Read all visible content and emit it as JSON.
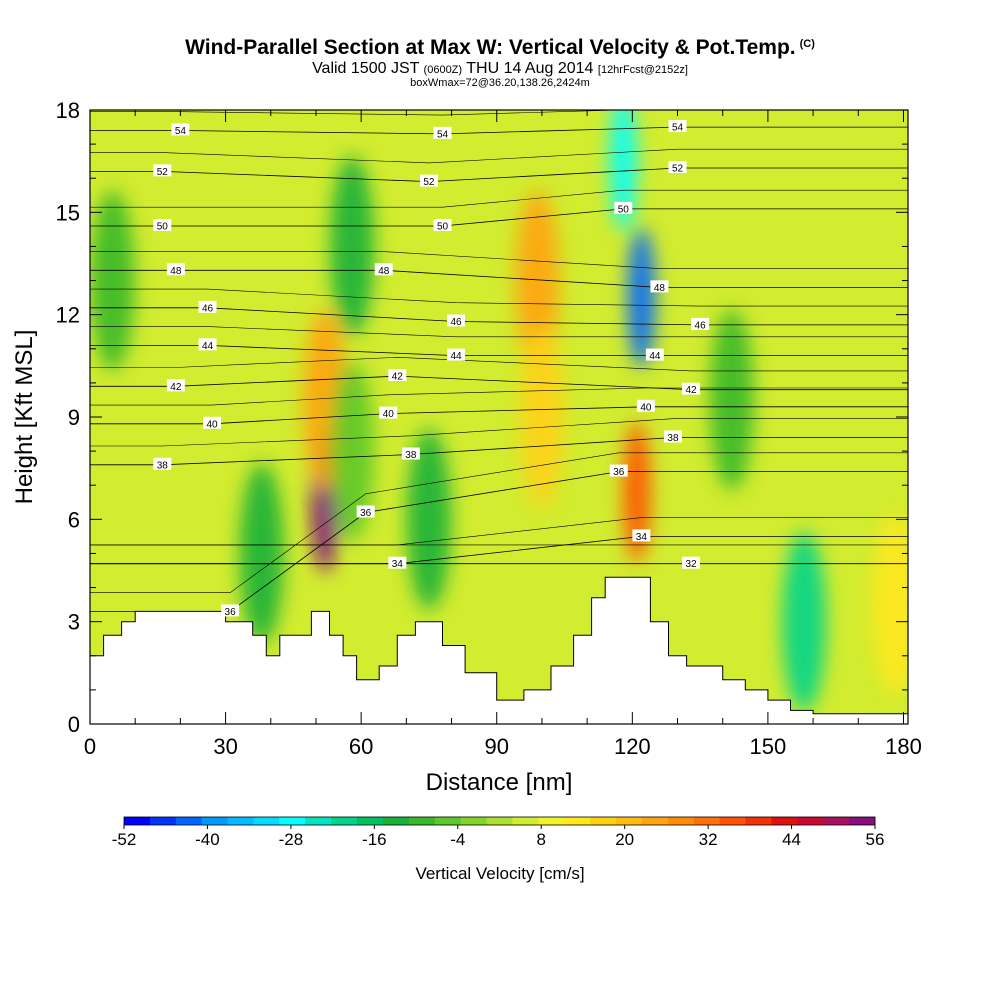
{
  "header": {
    "title": "Wind-Parallel Section at Max W: Vertical Velocity & Pot.Temp.",
    "copyright": "(C)",
    "valid_main": "Valid 1500 JST",
    "valid_zulu": "(0600Z)",
    "valid_date": "THU 14 Aug 2014",
    "forecast": "[12hrFcst@2152z]",
    "box_info": "boxWmax=72@36.20,138.26,2424m"
  },
  "chart_data": {
    "type": "heatmap",
    "xlabel": "Distance [nm]",
    "ylabel": "Height [Kft MSL]",
    "xlim": [
      0,
      181
    ],
    "ylim": [
      0,
      18
    ],
    "xticks": [
      0,
      30,
      60,
      90,
      120,
      150,
      180
    ],
    "yticks": [
      0,
      3,
      6,
      9,
      12,
      15,
      18
    ],
    "terrain": {
      "x": [
        0,
        3,
        3,
        7,
        7,
        10,
        10,
        20,
        20,
        30,
        30,
        36,
        36,
        39,
        39,
        42,
        42,
        49,
        49,
        53,
        53,
        56,
        56,
        59,
        59,
        64,
        64,
        68,
        68,
        72,
        72,
        78,
        78,
        83,
        83,
        90,
        90,
        96,
        96,
        102,
        102,
        107,
        107,
        111,
        111,
        114,
        114,
        119,
        119,
        124,
        124,
        128,
        128,
        132,
        132,
        140,
        140,
        145,
        145,
        150,
        150,
        155,
        155,
        160,
        160,
        167,
        167,
        173,
        173,
        181
      ],
      "height": [
        2.0,
        2.0,
        2.6,
        2.6,
        3.0,
        3.0,
        3.3,
        3.3,
        3.3,
        3.3,
        3.0,
        3.0,
        2.6,
        2.6,
        2.0,
        2.0,
        2.6,
        2.6,
        3.3,
        3.3,
        2.6,
        2.6,
        2.0,
        2.0,
        1.3,
        1.3,
        1.7,
        1.7,
        2.6,
        2.6,
        3.0,
        3.0,
        2.3,
        2.3,
        1.5,
        1.5,
        0.7,
        0.7,
        1.0,
        1.0,
        1.7,
        1.7,
        2.6,
        2.6,
        3.7,
        3.7,
        4.3,
        4.3,
        4.3,
        4.3,
        3.0,
        3.0,
        2.0,
        2.0,
        1.7,
        1.7,
        1.3,
        1.3,
        1.0,
        1.0,
        0.7,
        0.7,
        0.4,
        0.4,
        0.3,
        0.3,
        0.3,
        0.3,
        0.3,
        0.3
      ]
    },
    "vertical_velocity_field": {
      "units": "cm/s",
      "features": [
        {
          "x": 52,
          "height": 6.5,
          "value": 56
        },
        {
          "x": 52,
          "height": 9.5,
          "value": 24
        },
        {
          "x": 99,
          "height": 13,
          "value": 24
        },
        {
          "x": 100,
          "height": 9,
          "value": 16
        },
        {
          "x": 121,
          "height": 6.8,
          "value": 36
        },
        {
          "x": 122,
          "height": 12.5,
          "value": -48
        },
        {
          "x": 118,
          "height": 16.5,
          "value": -30
        },
        {
          "x": 158,
          "height": 3,
          "value": -24
        },
        {
          "x": 142,
          "height": 9.5,
          "value": -12
        },
        {
          "x": 58,
          "height": 14,
          "value": -14
        },
        {
          "x": 75,
          "height": 6,
          "value": -16
        },
        {
          "x": 38,
          "height": 5,
          "value": -16
        },
        {
          "x": 5,
          "height": 13,
          "value": -12
        },
        {
          "x": 178,
          "height": 3.5,
          "value": 14
        },
        {
          "x": 58,
          "height": 8,
          "value": -8
        }
      ]
    },
    "potential_temperature": {
      "units": "contour labels",
      "levels": [
        32,
        34,
        36,
        38,
        40,
        42,
        44,
        46,
        48,
        50,
        52,
        54
      ],
      "labels": [
        {
          "text": "54",
          "x": 20,
          "height": 17.4
        },
        {
          "text": "54",
          "x": 78,
          "height": 17.3
        },
        {
          "text": "54",
          "x": 130,
          "height": 17.5
        },
        {
          "text": "52",
          "x": 16,
          "height": 16.2
        },
        {
          "text": "52",
          "x": 75,
          "height": 15.9
        },
        {
          "text": "52",
          "x": 130,
          "height": 16.3
        },
        {
          "text": "50",
          "x": 16,
          "height": 14.6
        },
        {
          "text": "50",
          "x": 78,
          "height": 14.6
        },
        {
          "text": "50",
          "x": 118,
          "height": 15.1
        },
        {
          "text": "48",
          "x": 19,
          "height": 13.3
        },
        {
          "text": "48",
          "x": 65,
          "height": 13.3
        },
        {
          "text": "48",
          "x": 126,
          "height": 12.8
        },
        {
          "text": "46",
          "x": 26,
          "height": 12.2
        },
        {
          "text": "46",
          "x": 81,
          "height": 11.8
        },
        {
          "text": "46",
          "x": 135,
          "height": 11.7
        },
        {
          "text": "44",
          "x": 26,
          "height": 11.1
        },
        {
          "text": "44",
          "x": 81,
          "height": 10.8
        },
        {
          "text": "44",
          "x": 125,
          "height": 10.8
        },
        {
          "text": "42",
          "x": 19,
          "height": 9.9
        },
        {
          "text": "42",
          "x": 68,
          "height": 10.2
        },
        {
          "text": "42",
          "x": 133,
          "height": 9.8
        },
        {
          "text": "40",
          "x": 27,
          "height": 8.8
        },
        {
          "text": "40",
          "x": 66,
          "height": 9.1
        },
        {
          "text": "40",
          "x": 123,
          "height": 9.3
        },
        {
          "text": "38",
          "x": 16,
          "height": 7.6
        },
        {
          "text": "38",
          "x": 71,
          "height": 7.9
        },
        {
          "text": "38",
          "x": 129,
          "height": 8.4
        },
        {
          "text": "36",
          "x": 61,
          "height": 6.2
        },
        {
          "text": "36",
          "x": 117,
          "height": 7.4
        },
        {
          "text": "36",
          "x": 31,
          "height": 3.3
        },
        {
          "text": "34",
          "x": 68,
          "height": 4.7
        },
        {
          "text": "34",
          "x": 122,
          "height": 5.5
        },
        {
          "text": "32",
          "x": 133,
          "height": 4.7
        }
      ]
    },
    "colorbar": {
      "title": "Vertical Velocity [cm/s]",
      "tick_labels": [
        "-52",
        "-40",
        "-28",
        "-16",
        "-4",
        "8",
        "20",
        "32",
        "44",
        "56"
      ],
      "min": -56,
      "max": 56,
      "step": 4,
      "colors": [
        "#0000ff",
        "#0033ff",
        "#0066ff",
        "#0099ff",
        "#00bbff",
        "#00ddff",
        "#00ffff",
        "#00e5c0",
        "#00d48a",
        "#00c060",
        "#18b036",
        "#38b82a",
        "#5cc82a",
        "#86d428",
        "#aee030",
        "#d2ec30",
        "#f2f42a",
        "#ffe81e",
        "#ffd214",
        "#ffbc10",
        "#ffa40c",
        "#ff8c08",
        "#ff7006",
        "#ff5204",
        "#f53004",
        "#e01010",
        "#c80830",
        "#a81060",
        "#841080"
      ]
    }
  }
}
